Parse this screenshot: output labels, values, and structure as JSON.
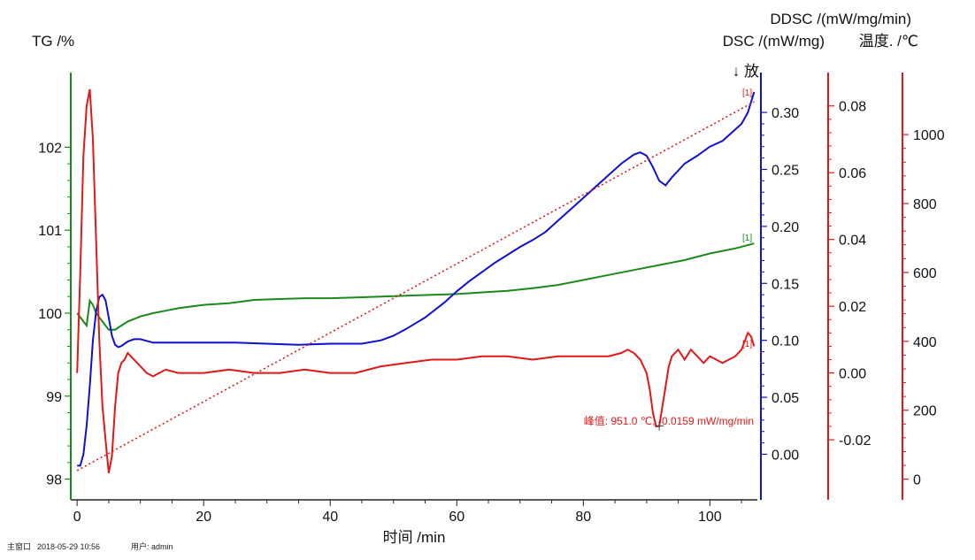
{
  "chart_data": {
    "type": "line",
    "xlabel": "时间 /min",
    "xlim": [
      -1,
      107.5
    ],
    "x_ticks": [
      0,
      20,
      40,
      60,
      80,
      100
    ],
    "axes": {
      "tg": {
        "label": "TG /%",
        "ylim": [
          97.75,
          102.9
        ],
        "ticks": [
          98,
          99,
          100,
          101,
          102
        ],
        "color": "#1a8a1a"
      },
      "dsc": {
        "label": "DSC /(mW/mg)",
        "ylim": [
          -0.04,
          0.335
        ],
        "ticks": [
          "0.00",
          "0.05",
          "0.10",
          "0.15",
          "0.20",
          "0.25",
          "0.30"
        ],
        "color": "#1010d0"
      },
      "ddsc": {
        "label": "DDSC /(mW/mg/min)",
        "ylim": [
          -0.038,
          0.09
        ],
        "ticks": [
          "-0.02",
          "0.00",
          "0.02",
          "0.04",
          "0.06",
          "0.08"
        ],
        "color": "#e01818"
      },
      "temp": {
        "label": "温度. /℃",
        "ylim": [
          -60,
          1180
        ],
        "ticks": [
          0,
          200,
          400,
          600,
          800,
          1000
        ],
        "color": "#e01818"
      }
    },
    "exo_label": "↓ 放",
    "series": [
      {
        "axis": "tg",
        "color": "#1a8a1a",
        "x": [
          0,
          1,
          1.5,
          2,
          2.5,
          3,
          3.5,
          4,
          4.5,
          5,
          6,
          7,
          8,
          10,
          12,
          14,
          16,
          18,
          20,
          24,
          28,
          32,
          36,
          40,
          44,
          48,
          52,
          56,
          60,
          64,
          68,
          72,
          76,
          80,
          84,
          88,
          92,
          96,
          100,
          104,
          107
        ],
        "y": [
          100.0,
          99.9,
          99.85,
          100.15,
          100.1,
          100.0,
          99.95,
          99.9,
          99.85,
          99.8,
          99.8,
          99.85,
          99.9,
          99.96,
          100.0,
          100.03,
          100.06,
          100.08,
          100.1,
          100.12,
          100.16,
          100.17,
          100.18,
          100.18,
          100.19,
          100.2,
          100.21,
          100.22,
          100.23,
          100.25,
          100.27,
          100.3,
          100.34,
          100.4,
          100.46,
          100.52,
          100.58,
          100.64,
          100.72,
          100.78,
          100.84
        ]
      },
      {
        "axis": "dsc",
        "color": "#1010d0",
        "x": [
          0,
          0.5,
          1,
          1.5,
          2,
          2.5,
          3,
          3.5,
          4,
          4.5,
          5,
          5.5,
          6,
          6.5,
          7,
          8,
          9,
          10,
          12,
          14,
          16,
          20,
          25,
          30,
          35,
          40,
          45,
          48,
          50,
          52,
          55,
          58,
          60,
          62,
          64,
          66,
          68,
          70,
          72,
          74,
          76,
          78,
          80,
          82,
          84,
          86,
          88,
          89,
          90,
          91,
          92,
          93,
          94,
          96,
          98,
          100,
          102,
          104,
          105,
          106,
          107
        ],
        "y": [
          -0.01,
          -0.01,
          0.0,
          0.025,
          0.06,
          0.1,
          0.125,
          0.138,
          0.14,
          0.135,
          0.12,
          0.104,
          0.096,
          0.094,
          0.095,
          0.099,
          0.101,
          0.101,
          0.098,
          0.098,
          0.098,
          0.098,
          0.098,
          0.097,
          0.096,
          0.097,
          0.097,
          0.1,
          0.104,
          0.11,
          0.12,
          0.133,
          0.143,
          0.152,
          0.16,
          0.168,
          0.175,
          0.182,
          0.188,
          0.195,
          0.205,
          0.215,
          0.225,
          0.235,
          0.245,
          0.255,
          0.263,
          0.265,
          0.262,
          0.252,
          0.24,
          0.236,
          0.243,
          0.255,
          0.262,
          0.27,
          0.275,
          0.285,
          0.29,
          0.3,
          0.318
        ]
      },
      {
        "axis": "ddsc",
        "color": "#e01818",
        "x": [
          0,
          0.5,
          1,
          1.5,
          2,
          2.5,
          3,
          3.5,
          4,
          4.5,
          5,
          5.5,
          6,
          6.5,
          7,
          7.5,
          8,
          9,
          10,
          11,
          12,
          14,
          16,
          18,
          20,
          24,
          28,
          32,
          36,
          40,
          44,
          48,
          52,
          56,
          60,
          64,
          68,
          72,
          76,
          80,
          84,
          86,
          87,
          88,
          89,
          90,
          90.5,
          91,
          91.5,
          92,
          92.5,
          93,
          93.5,
          94,
          95,
          96,
          97,
          98,
          99,
          100,
          101,
          102,
          103,
          104,
          105,
          106,
          106.5,
          107
        ],
        "y": [
          0.0,
          0.03,
          0.065,
          0.08,
          0.085,
          0.07,
          0.04,
          0.01,
          -0.01,
          -0.02,
          -0.03,
          -0.025,
          -0.01,
          0.0,
          0.003,
          0.004,
          0.006,
          0.004,
          0.002,
          0.0,
          -0.001,
          0.001,
          0.0,
          0.0,
          0.0,
          0.001,
          0.0,
          0.0,
          0.001,
          0.0,
          0.0,
          0.002,
          0.003,
          0.004,
          0.004,
          0.005,
          0.005,
          0.004,
          0.005,
          0.005,
          0.005,
          0.006,
          0.007,
          0.006,
          0.004,
          0.0,
          -0.005,
          -0.012,
          -0.016,
          -0.0159,
          -0.01,
          -0.004,
          0.002,
          0.005,
          0.007,
          0.004,
          0.007,
          0.005,
          0.003,
          0.005,
          0.004,
          0.003,
          0.004,
          0.005,
          0.007,
          0.012,
          0.011,
          0.008
        ]
      },
      {
        "axis": "temp",
        "color": "#e01818",
        "dashed": true,
        "x": [
          0,
          107
        ],
        "y": [
          25,
          1095
        ]
      }
    ],
    "annotations": {
      "peak_text": "峰值: 951.0 ℃, -0.0159 mW/mg/min",
      "peak_point": {
        "x": 92,
        "axis": "ddsc",
        "y": -0.0159
      },
      "marker_tg": "[1]",
      "marker_temp": "[1]",
      "marker_ddsc": "[1]"
    },
    "grid": false
  },
  "footer": {
    "window": "主窗口",
    "datetime": "2018-05-29 10:56",
    "user": "用户: admin"
  }
}
